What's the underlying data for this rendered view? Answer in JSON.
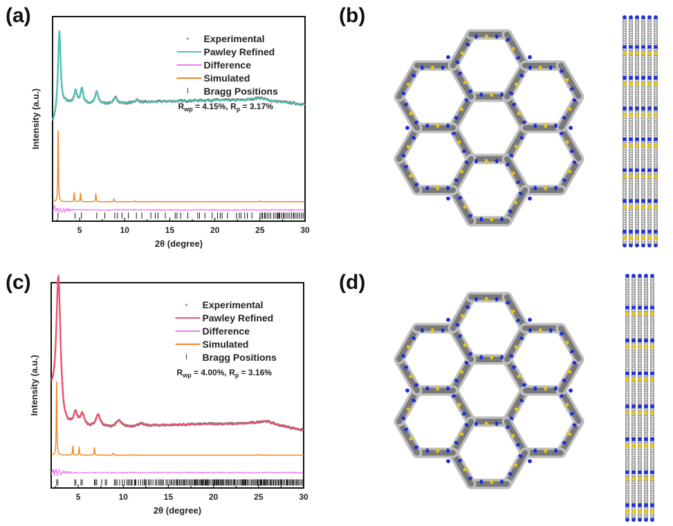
{
  "panels": {
    "a": "(a)",
    "b": "(b)",
    "c": "(c)",
    "d": "(d)"
  },
  "chart_data": [
    {
      "id": "a",
      "type": "line",
      "title": "",
      "xlabel": "2θ (degree)",
      "ylabel": "Intensity (a.u.)",
      "xlim": [
        2,
        30
      ],
      "xticks": [
        5,
        10,
        15,
        20,
        25,
        30
      ],
      "ylim": [
        0,
        100
      ],
      "grid": false,
      "legend_position": "top-right",
      "legend": [
        {
          "name": "Experimental",
          "style": "marker-plus",
          "color": "#555555"
        },
        {
          "name": "Pawley Refined",
          "style": "line",
          "color": "#4fc1b4"
        },
        {
          "name": "Difference",
          "style": "line",
          "color": "#e87ef0"
        },
        {
          "name": "Simulated",
          "style": "line",
          "color": "#f5851f"
        },
        {
          "name": "Bragg Positions",
          "style": "tick",
          "color": "#222222"
        }
      ],
      "annotation": {
        "rwp_label": "R",
        "rwp_sub": "wp",
        "rwp_value": " = 4.15%, ",
        "rp_label": "R",
        "rp_sub": "p",
        "rp_value": " = 3.17%"
      },
      "refined_color": "#4fc1b4",
      "refined_profile": {
        "baseline": 59,
        "peaks": [
          {
            "x": 2.75,
            "h": 40,
            "w": 0.18
          },
          {
            "x": 4.55,
            "h": 6.5,
            "w": 0.18
          },
          {
            "x": 5.25,
            "h": 7.5,
            "w": 0.18
          },
          {
            "x": 6.9,
            "h": 6,
            "w": 0.2
          },
          {
            "x": 9.0,
            "h": 3,
            "w": 0.25
          },
          {
            "x": 11.35,
            "h": 1.4,
            "w": 0.3
          },
          {
            "x": 25.0,
            "h": 1.6,
            "w": 0.8
          }
        ],
        "start": [
          2,
          47
        ],
        "plateau": [
          [
            10,
            57.5
          ],
          [
            14,
            58.5
          ],
          [
            20,
            59.2
          ],
          [
            24,
            59
          ],
          [
            28,
            58
          ],
          [
            30,
            57
          ]
        ]
      },
      "simulated": {
        "baseline": 9.5,
        "peaks": [
          {
            "x": 2.62,
            "h": 35
          },
          {
            "x": 4.4,
            "h": 4.5
          },
          {
            "x": 5.1,
            "h": 4.3
          },
          {
            "x": 6.8,
            "h": 4
          },
          {
            "x": 8.8,
            "h": 1.4
          },
          {
            "x": 11.1,
            "h": 0.5
          },
          {
            "x": 13.6,
            "h": 0.3
          },
          {
            "x": 25.0,
            "h": 0.4
          }
        ]
      },
      "difference": {
        "baseline": 5.5,
        "noise_until": 5.5
      },
      "bragg_positions": [
        2.6,
        4.5,
        5.2,
        6.9,
        7.8,
        8.9,
        9.2,
        9.7,
        10.4,
        11.3,
        11.9,
        12.9,
        13.4,
        13.7,
        14.5,
        15.6,
        15.8,
        16.2,
        17.0,
        18.1,
        18.3,
        18.9,
        19.7,
        20.3,
        20.6,
        20.8,
        21.4,
        22.4,
        22.7,
        22.9,
        23.3,
        23.6,
        24.1,
        25.0,
        25.2,
        25.3,
        25.5,
        25.6,
        25.8,
        26.0,
        26.2,
        26.5,
        26.7,
        26.9,
        27.0,
        27.1,
        27.2,
        27.4,
        27.6,
        27.7,
        27.9,
        28.1,
        28.3,
        28.5,
        28.7,
        28.8,
        29.0,
        29.2,
        29.4,
        29.6,
        29.8
      ]
    },
    {
      "id": "c",
      "type": "line",
      "title": "",
      "xlabel": "2θ (degree)",
      "ylabel": "Intensity (a.u.)",
      "xlim": [
        2,
        30
      ],
      "xticks": [
        5,
        10,
        15,
        20,
        25,
        30
      ],
      "ylim": [
        0,
        100
      ],
      "grid": false,
      "legend_position": "top-right",
      "legend": [
        {
          "name": "Experimental",
          "style": "marker-plus",
          "color": "#555555"
        },
        {
          "name": "Pawley Refined",
          "style": "line",
          "color": "#f0506e"
        },
        {
          "name": "Difference",
          "style": "line",
          "color": "#e87ef0"
        },
        {
          "name": "Simulated",
          "style": "line",
          "color": "#f5851f"
        },
        {
          "name": "Bragg Positions",
          "style": "tick",
          "color": "#222222"
        }
      ],
      "annotation": {
        "rwp_label": "R",
        "rwp_sub": "wp",
        "rwp_value": " = 4.00%, ",
        "rp_label": "R",
        "rp_sub": "p",
        "rp_value": " = 3.16%"
      },
      "refined_color": "#f0506e",
      "refined_profile": {
        "baseline": 31,
        "peaks": [
          {
            "x": 2.8,
            "h": 67,
            "w": 0.28
          },
          {
            "x": 4.7,
            "h": 6.5,
            "w": 0.25
          },
          {
            "x": 5.45,
            "h": 6,
            "w": 0.28
          },
          {
            "x": 7.2,
            "h": 6,
            "w": 0.3
          },
          {
            "x": 9.5,
            "h": 3.2,
            "w": 0.35
          },
          {
            "x": 11.9,
            "h": 1.2,
            "w": 0.45
          },
          {
            "x": 25.8,
            "h": 2.2,
            "w": 1.2
          }
        ],
        "start": [
          2,
          45
        ],
        "plateau": [
          [
            10,
            29.5
          ],
          [
            14,
            30.5
          ],
          [
            20,
            31.2
          ],
          [
            24,
            31
          ],
          [
            28,
            29.5
          ],
          [
            30,
            28
          ]
        ]
      },
      "simulated": {
        "baseline": 16,
        "peaks": [
          {
            "x": 2.6,
            "h": 36
          },
          {
            "x": 4.4,
            "h": 4.5
          },
          {
            "x": 5.1,
            "h": 4
          },
          {
            "x": 6.8,
            "h": 3.8
          },
          {
            "x": 8.9,
            "h": 1
          },
          {
            "x": 11.2,
            "h": 0.3
          },
          {
            "x": 24.9,
            "h": 0.4
          }
        ]
      },
      "difference": {
        "baseline": 7.5,
        "noise_until": 6.5
      },
      "bragg_positions": "dense"
    }
  ],
  "structures": [
    {
      "id": "b",
      "top_view": "hexagonal-framework-top-view",
      "side_view": "stacked-layers-side-view",
      "side_columns": 6
    },
    {
      "id": "d",
      "top_view": "hexagonal-framework-top-view",
      "side_view": "stacked-layers-side-view",
      "side_columns": 5
    }
  ],
  "atom_colors": {
    "carbon": "#7f7f7f",
    "hydrogen": "#e8e8e8",
    "nitrogen": "#1f2fd6",
    "sulfur": "#e6c619"
  }
}
